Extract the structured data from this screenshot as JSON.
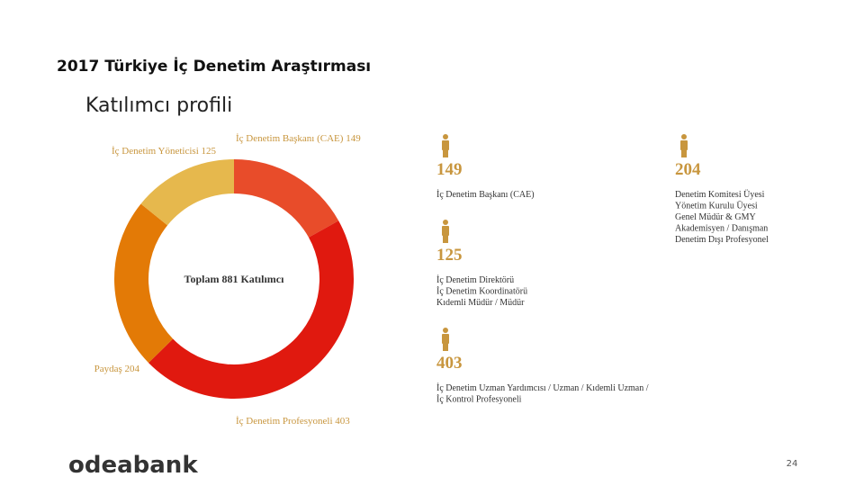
{
  "header": {
    "title": "2017 Türkiye İç Denetim Araştırması",
    "subtitle": "Katılımcı profili"
  },
  "chart_data": {
    "type": "donut",
    "categories": [
      "İç Denetim Başkanı (CAE)",
      "İç Denetim Profesyoneli",
      "Paydaş",
      "İç Denetim Yöneticisi"
    ],
    "values": [
      149,
      403,
      204,
      125
    ],
    "colors": [
      "#e84c2a",
      "#e0190f",
      "#e37a06",
      "#e6b84d"
    ],
    "center_label": "Toplam 881 Katılımcı"
  },
  "profiles": [
    {
      "number": "149",
      "lines": [
        "İç Denetim Başkanı (CAE)"
      ]
    },
    {
      "number": "204",
      "lines": [
        "Denetim Komitesi Üyesi",
        "Yönetim Kurulu Üyesi",
        "Genel Müdür & GMY",
        "Akademisyen / Danışman",
        "Denetim Dışı Profesyonel"
      ]
    },
    {
      "number": "125",
      "lines": [
        "İç Denetim Direktörü",
        "İç Denetim Koordinatörü",
        "Kıdemli Müdür / Müdür"
      ]
    },
    {
      "number": "403",
      "lines": [
        "İç Denetim Uzman Yardımcısı / Uzman / Kıdemli Uzman /",
        "İç Kontrol Profesyoneli"
      ]
    }
  ],
  "footer": {
    "logo": "odeabank",
    "page": "24"
  }
}
